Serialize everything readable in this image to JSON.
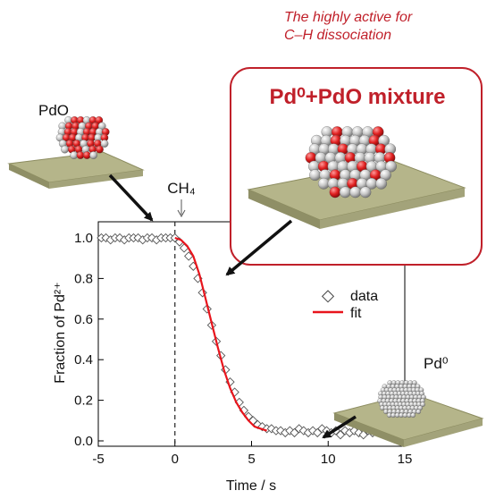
{
  "annotations": {
    "note_line1": "The highly active for",
    "note_line2": "C–H dissociation",
    "mixture_box_label": "Pd⁰+PdO mixture",
    "pdo_label": "PdO",
    "pd0_label": "Pd⁰",
    "ch4_label": "CH₄",
    "colors": {
      "accent_red": "#c0202a",
      "substrate": "#b5b58a",
      "fit_line": "#e8141c",
      "oxygen_atom": "#e02020",
      "pd_atom": "#c8c8c8"
    }
  },
  "chart_data": {
    "type": "scatter",
    "xlabel": "Time / s",
    "ylabel": "Fraction of Pd²⁺",
    "xlim": [
      -5,
      15
    ],
    "ylim": [
      0.0,
      1.05
    ],
    "xticks": [
      "-5",
      "0",
      "5",
      "10",
      "15"
    ],
    "yticks": [
      "0.0",
      "0.2",
      "0.4",
      "0.6",
      "0.8",
      "1.0"
    ],
    "legend": {
      "placement": "right-middle",
      "entries": [
        "data",
        "fit"
      ]
    },
    "series": [
      {
        "name": "data",
        "marker": "open-diamond",
        "x": [
          -4.8,
          -4.5,
          -4.2,
          -3.9,
          -3.6,
          -3.3,
          -3.0,
          -2.7,
          -2.4,
          -2.1,
          -1.8,
          -1.5,
          -1.2,
          -0.9,
          -0.6,
          -0.3,
          0.0,
          0.3,
          0.6,
          0.9,
          1.2,
          1.5,
          1.8,
          2.1,
          2.4,
          2.7,
          3.0,
          3.3,
          3.6,
          3.9,
          4.2,
          4.5,
          4.8,
          5.1,
          5.4,
          5.7,
          6.0,
          6.3,
          6.6,
          6.9,
          7.2,
          7.5,
          7.8,
          8.1,
          8.4,
          8.7,
          9.0,
          9.3,
          9.6,
          9.9,
          10.2,
          10.5,
          10.8,
          11.1,
          11.4,
          11.7,
          12.0,
          12.3,
          12.6,
          12.9,
          13.2,
          13.5,
          13.8,
          14.1,
          14.4,
          14.7
        ],
        "y": [
          1.0,
          1.0,
          0.99,
          1.0,
          1.0,
          0.99,
          1.0,
          1.0,
          1.0,
          0.99,
          1.0,
          1.0,
          0.99,
          1.0,
          1.0,
          1.0,
          1.0,
          0.98,
          0.95,
          0.91,
          0.86,
          0.8,
          0.73,
          0.65,
          0.57,
          0.49,
          0.42,
          0.35,
          0.29,
          0.24,
          0.19,
          0.15,
          0.12,
          0.1,
          0.08,
          0.07,
          0.06,
          0.06,
          0.05,
          0.05,
          0.04,
          0.05,
          0.04,
          0.06,
          0.05,
          0.04,
          0.05,
          0.04,
          0.06,
          0.05,
          0.04,
          0.05,
          0.03,
          0.05,
          0.04,
          0.05,
          0.04,
          0.03,
          0.05,
          0.04,
          0.05,
          0.04,
          0.05,
          0.04,
          0.05,
          0.04
        ]
      },
      {
        "name": "fit",
        "style": "line",
        "x": [
          0.0,
          0.4,
          0.8,
          1.2,
          1.6,
          2.0,
          2.4,
          2.8,
          3.2,
          3.6,
          4.0,
          4.4,
          4.8,
          5.2,
          5.6,
          6.0
        ],
        "y": [
          1.0,
          0.99,
          0.96,
          0.91,
          0.82,
          0.7,
          0.58,
          0.46,
          0.35,
          0.26,
          0.19,
          0.14,
          0.1,
          0.07,
          0.06,
          0.05
        ]
      }
    ],
    "reference_line": {
      "x": 0,
      "style": "dashed",
      "label": "CH₄"
    }
  }
}
